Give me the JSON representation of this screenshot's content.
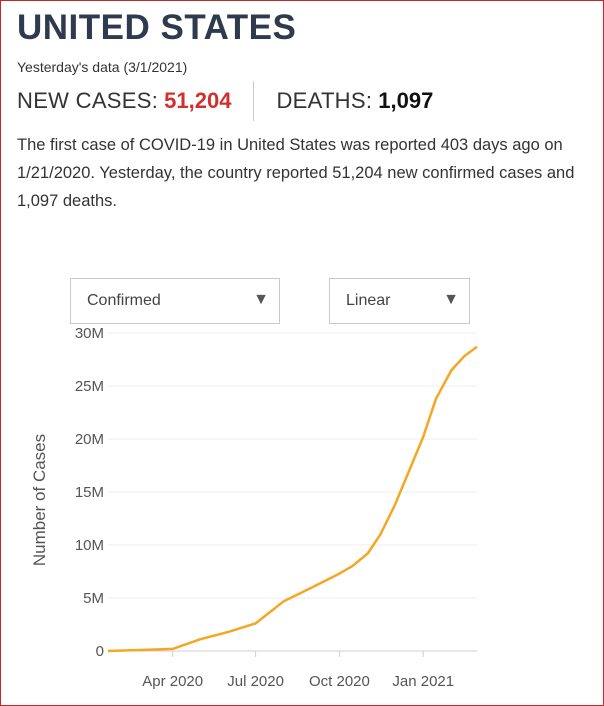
{
  "header": {
    "title": "UNITED STATES",
    "subtitle": "Yesterday's data (3/1/2021)"
  },
  "stats": {
    "new_cases_label": "NEW CASES:",
    "new_cases_value": "51,204",
    "deaths_label": "DEATHS:",
    "deaths_value": "1,097"
  },
  "description": {
    "p1": "The first case of ",
    "covid": "COVID-19",
    "p2": " in ",
    "country": "United States",
    "p3": " was reported 403 days ago on 1/21/2020. Yesterday, the country reported 51,204 new confirmed cases and 1,097 deaths."
  },
  "controls": {
    "metric_select": "Confirmed",
    "scale_select": "Linear"
  },
  "colors": {
    "accent": "#d32f2f",
    "line": "#f5a623",
    "title": "#2e3b4e"
  },
  "chart_data": {
    "type": "line",
    "ylabel": "Number of Cases",
    "ylim": [
      0,
      30000000
    ],
    "yticks": [
      0,
      5000000,
      10000000,
      15000000,
      20000000,
      25000000,
      30000000
    ],
    "ytick_labels": [
      "0",
      "5M",
      "10M",
      "15M",
      "20M",
      "25M",
      "30M"
    ],
    "xticks": [
      "2020-04-01",
      "2020-07-01",
      "2020-10-01",
      "2021-01-01"
    ],
    "xtick_labels": [
      "Apr 2020",
      "Jul 2020",
      "Oct 2020",
      "Jan 2021"
    ],
    "xlim": [
      "2020-01-21",
      "2021-03-01"
    ],
    "grid": true,
    "series": [
      {
        "x": [
          "2020-01-21",
          "2020-03-01",
          "2020-04-01",
          "2020-05-01",
          "2020-06-01",
          "2020-07-01",
          "2020-08-01",
          "2020-09-01",
          "2020-10-01",
          "2020-10-15",
          "2020-11-01",
          "2020-11-15",
          "2020-12-01",
          "2020-12-15",
          "2021-01-01",
          "2021-01-15",
          "2021-02-01",
          "2021-02-15",
          "2021-03-01"
        ],
        "y": [
          0,
          100000,
          200000,
          1100000,
          1800000,
          2600000,
          4700000,
          6000000,
          7300000,
          8000000,
          9200000,
          11000000,
          13800000,
          16700000,
          20200000,
          23800000,
          26500000,
          27800000,
          28700000
        ]
      }
    ]
  }
}
